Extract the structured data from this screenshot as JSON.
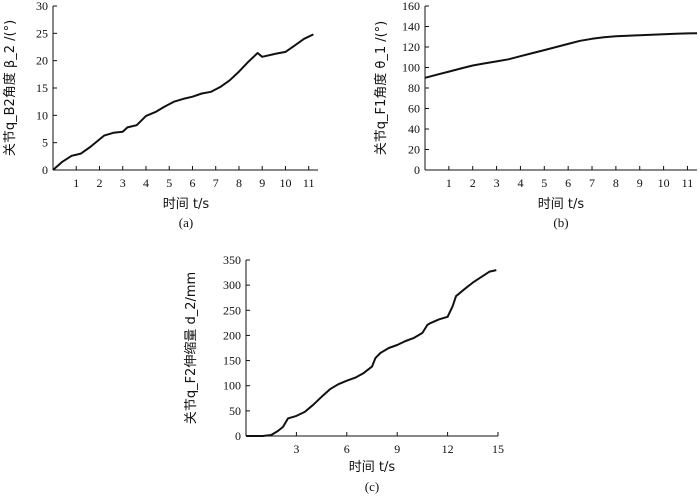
{
  "chart_data": [
    {
      "type": "line",
      "caption": "(a)",
      "xlabel": "时间 t/s",
      "ylabel": "关节q_B2角度 β_2 /(°)",
      "xlim": [
        0,
        11.4
      ],
      "ylim": [
        0,
        30
      ],
      "xticks": [
        1,
        2,
        3,
        4,
        5,
        6,
        7,
        8,
        9,
        10,
        11
      ],
      "yticks": [
        0,
        5,
        10,
        15,
        20,
        25,
        30
      ],
      "series": [
        {
          "x": [
            0,
            0.4,
            0.8,
            1.2,
            1.6,
            2.0,
            2.2,
            2.6,
            3.0,
            3.2,
            3.6,
            4.0,
            4.4,
            4.8,
            5.2,
            5.6,
            6.0,
            6.4,
            6.8,
            7.2,
            7.6,
            8.0,
            8.4,
            8.8,
            9.0,
            9.6,
            10.0,
            10.4,
            10.8,
            11.2
          ],
          "y": [
            0,
            1.5,
            2.6,
            3.0,
            4.2,
            5.6,
            6.3,
            6.8,
            7.0,
            7.8,
            8.2,
            9.9,
            10.6,
            11.6,
            12.5,
            13.0,
            13.4,
            14.0,
            14.3,
            15.2,
            16.4,
            18.0,
            19.8,
            21.4,
            20.7,
            21.3,
            21.6,
            22.8,
            24.0,
            24.8
          ]
        }
      ]
    },
    {
      "type": "line",
      "caption": "(b)",
      "xlabel": "时间 t/s",
      "ylabel": "关节q_F1角度 θ_1 /(°)",
      "xlim": [
        0,
        11.4
      ],
      "ylim": [
        0,
        160
      ],
      "xticks": [
        1,
        2,
        3,
        4,
        5,
        6,
        7,
        8,
        9,
        10,
        11
      ],
      "yticks": [
        0,
        20,
        40,
        60,
        80,
        100,
        120,
        140,
        160
      ],
      "series": [
        {
          "x": [
            0,
            0.5,
            1,
            1.5,
            2,
            2.5,
            3,
            3.5,
            4,
            4.5,
            5,
            5.5,
            6,
            6.5,
            7,
            7.5,
            8,
            8.5,
            9,
            9.5,
            10,
            10.5,
            11,
            11.4
          ],
          "y": [
            90,
            93,
            96,
            99,
            102,
            104,
            106,
            108,
            111,
            114,
            117,
            120,
            123,
            126,
            128,
            129.5,
            130.5,
            131,
            131.5,
            132,
            132.5,
            133,
            133.3,
            133.5
          ]
        }
      ]
    },
    {
      "type": "line",
      "caption": "(c)",
      "xlabel": "时间 t/s",
      "ylabel": "关节q_F2伸缩量 d_2/mm",
      "xlim": [
        0,
        15
      ],
      "ylim": [
        0,
        350
      ],
      "xticks": [
        3,
        6,
        9,
        12,
        15
      ],
      "yticks": [
        0,
        50,
        100,
        150,
        200,
        250,
        300,
        350
      ],
      "series": [
        {
          "x": [
            0,
            1.0,
            1.5,
            1.9,
            2.2,
            2.5,
            3.0,
            3.5,
            4.0,
            4.5,
            5.0,
            5.5,
            6.0,
            6.5,
            7.0,
            7.5,
            7.7,
            8.0,
            8.5,
            9.0,
            9.5,
            10.0,
            10.5,
            10.8,
            11.0,
            11.5,
            12.0,
            12.3,
            12.5,
            13.0,
            13.5,
            14.0,
            14.5,
            14.9
          ],
          "y": [
            0,
            0,
            2,
            10,
            18,
            35,
            40,
            48,
            62,
            78,
            93,
            103,
            110,
            116,
            125,
            138,
            155,
            165,
            175,
            181,
            189,
            195,
            205,
            221,
            225,
            232,
            237,
            258,
            278,
            292,
            305,
            316,
            327,
            330
          ]
        }
      ]
    }
  ]
}
